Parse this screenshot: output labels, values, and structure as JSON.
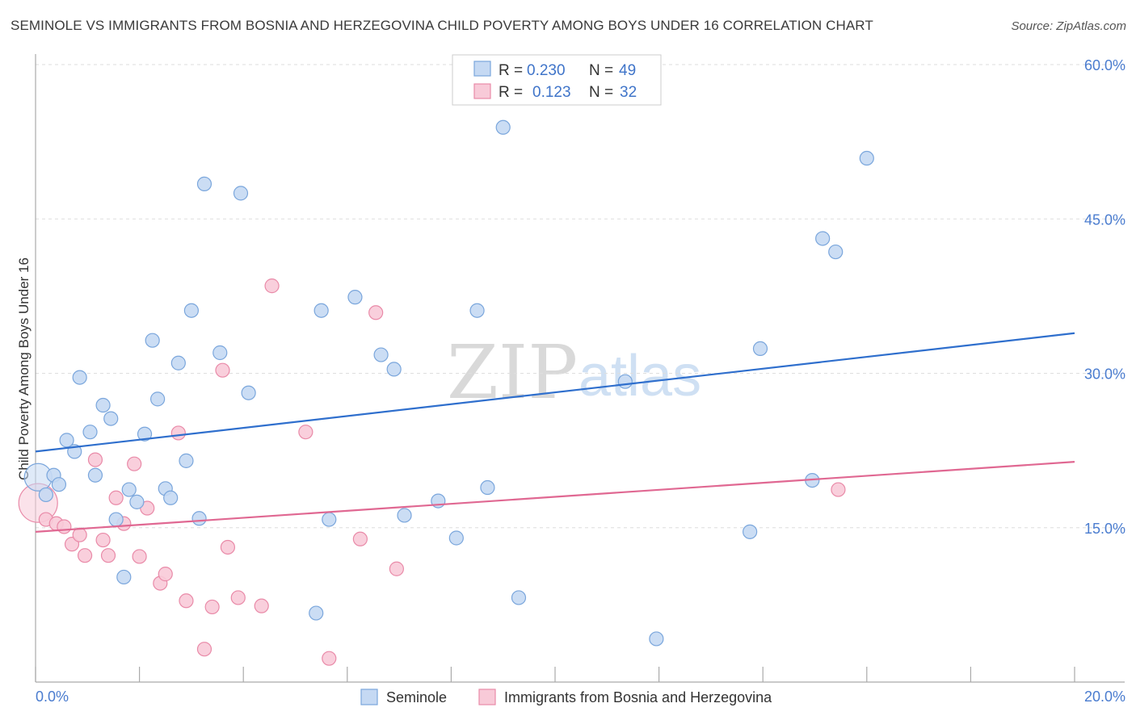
{
  "header": {
    "title": "SEMINOLE VS IMMIGRANTS FROM BOSNIA AND HERZEGOVINA CHILD POVERTY AMONG BOYS UNDER 16 CORRELATION CHART",
    "source": "Source: ZipAtlas.com"
  },
  "watermark": {
    "zip": "ZIP",
    "atlas": "atlas"
  },
  "legend": {
    "rows": [
      {
        "r_label": "R =",
        "r_value": "0.230",
        "n_label": "N =",
        "n_value": "49"
      },
      {
        "r_label": "R =",
        "r_value": "0.123",
        "n_label": "N =",
        "n_value": "32"
      }
    ]
  },
  "bottom_legend": {
    "items": [
      {
        "label": "Seminole"
      },
      {
        "label": "Immigrants from Bosnia and Herzegovina"
      }
    ]
  },
  "chart_data": {
    "type": "scatter",
    "title": "SEMINOLE VS IMMIGRANTS FROM BOSNIA AND HERZEGOVINA CHILD POVERTY AMONG BOYS UNDER 16 CORRELATION CHART",
    "xlabel": "",
    "ylabel": "Child Poverty Among Boys Under 16",
    "xlim": [
      0,
      20
    ],
    "ylim": [
      0,
      60
    ],
    "x_tick_labels": [
      "0.0%",
      "20.0%"
    ],
    "y_ticks": [
      15,
      30,
      45,
      60
    ],
    "y_tick_labels": [
      "15.0%",
      "30.0%",
      "45.0%",
      "60.0%"
    ],
    "grid": true,
    "legend_position": "top-center",
    "colors": {
      "seminole_fill": "#c5d9f3",
      "seminole_stroke": "#7aa6dc",
      "seminole_line": "#2f6fcd",
      "bosnia_fill": "#f8cad8",
      "bosnia_stroke": "#e98aa8",
      "bosnia_line": "#e06892"
    },
    "series": [
      {
        "name": "Seminole",
        "r": 0.23,
        "n": 49,
        "trend": {
          "x": [
            0,
            20
          ],
          "y": [
            22.4,
            33.9
          ]
        },
        "points": [
          [
            0.05,
            19.9
          ],
          [
            0.2,
            18.2
          ],
          [
            0.35,
            20.1
          ],
          [
            0.45,
            19.2
          ],
          [
            0.6,
            23.5
          ],
          [
            0.75,
            22.4
          ],
          [
            0.85,
            29.6
          ],
          [
            1.05,
            24.3
          ],
          [
            1.15,
            20.1
          ],
          [
            1.3,
            26.9
          ],
          [
            1.45,
            25.6
          ],
          [
            1.55,
            15.8
          ],
          [
            1.7,
            10.2
          ],
          [
            1.8,
            18.7
          ],
          [
            1.95,
            17.5
          ],
          [
            2.1,
            24.1
          ],
          [
            2.25,
            33.2
          ],
          [
            2.35,
            27.5
          ],
          [
            2.5,
            18.8
          ],
          [
            2.6,
            17.9
          ],
          [
            2.75,
            31.0
          ],
          [
            2.9,
            21.5
          ],
          [
            3.0,
            36.1
          ],
          [
            3.15,
            15.9
          ],
          [
            3.25,
            48.4
          ],
          [
            3.55,
            32.0
          ],
          [
            3.95,
            47.5
          ],
          [
            4.1,
            28.1
          ],
          [
            5.4,
            6.7
          ],
          [
            5.5,
            36.1
          ],
          [
            5.65,
            15.8
          ],
          [
            6.15,
            37.4
          ],
          [
            6.65,
            31.8
          ],
          [
            6.9,
            30.4
          ],
          [
            7.1,
            16.2
          ],
          [
            7.75,
            17.6
          ],
          [
            8.1,
            14.0
          ],
          [
            8.5,
            36.1
          ],
          [
            8.7,
            18.9
          ],
          [
            9.0,
            53.9
          ],
          [
            9.3,
            8.2
          ],
          [
            11.35,
            29.2
          ],
          [
            11.95,
            4.2
          ],
          [
            13.75,
            14.6
          ],
          [
            13.95,
            32.4
          ],
          [
            14.95,
            19.6
          ],
          [
            15.15,
            43.1
          ],
          [
            15.4,
            41.8
          ],
          [
            16.0,
            50.9
          ]
        ]
      },
      {
        "name": "Immigrants from Bosnia and Herzegovina",
        "r": 0.123,
        "n": 32,
        "trend": {
          "x": [
            0,
            20
          ],
          "y": [
            14.6,
            21.4
          ]
        },
        "points": [
          [
            0.05,
            17.4
          ],
          [
            0.2,
            15.8
          ],
          [
            0.4,
            15.4
          ],
          [
            0.55,
            15.1
          ],
          [
            0.7,
            13.4
          ],
          [
            0.85,
            14.3
          ],
          [
            0.95,
            12.3
          ],
          [
            1.15,
            21.6
          ],
          [
            1.3,
            13.8
          ],
          [
            1.4,
            12.3
          ],
          [
            1.55,
            17.9
          ],
          [
            1.7,
            15.4
          ],
          [
            1.9,
            21.2
          ],
          [
            2.0,
            12.2
          ],
          [
            2.15,
            16.9
          ],
          [
            2.4,
            9.6
          ],
          [
            2.5,
            10.5
          ],
          [
            2.75,
            24.2
          ],
          [
            2.9,
            7.9
          ],
          [
            3.25,
            3.2
          ],
          [
            3.4,
            7.3
          ],
          [
            3.6,
            30.3
          ],
          [
            3.7,
            13.1
          ],
          [
            3.9,
            8.2
          ],
          [
            4.35,
            7.4
          ],
          [
            4.55,
            38.5
          ],
          [
            5.2,
            24.3
          ],
          [
            5.65,
            2.3
          ],
          [
            6.25,
            13.9
          ],
          [
            6.55,
            35.9
          ],
          [
            6.95,
            11.0
          ],
          [
            15.45,
            18.7
          ]
        ]
      }
    ]
  }
}
